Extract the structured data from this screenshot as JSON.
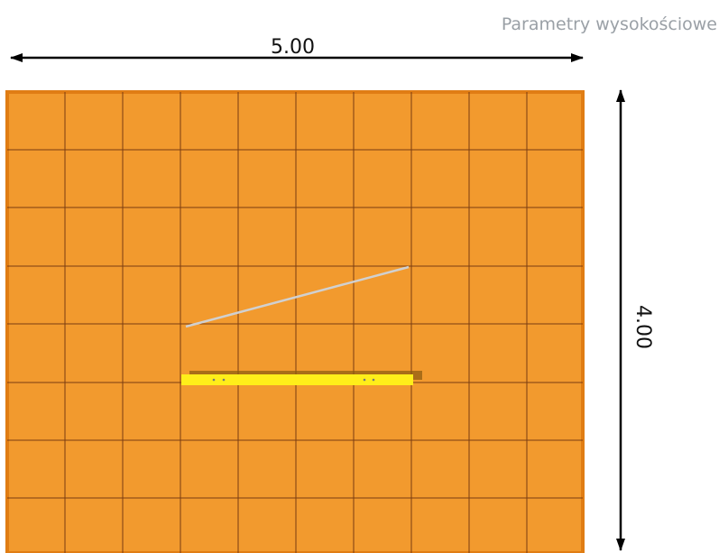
{
  "header": {
    "title": "Parametry wysokościowe"
  },
  "dimensions": {
    "width_label": "5.00",
    "height_label": "4.00"
  },
  "floor": {
    "color": "#f29a2e",
    "grid_color": "#7a3c12"
  },
  "beam": {
    "color": "#ffee1a"
  },
  "cable": {
    "color": "#d0d0d0"
  }
}
